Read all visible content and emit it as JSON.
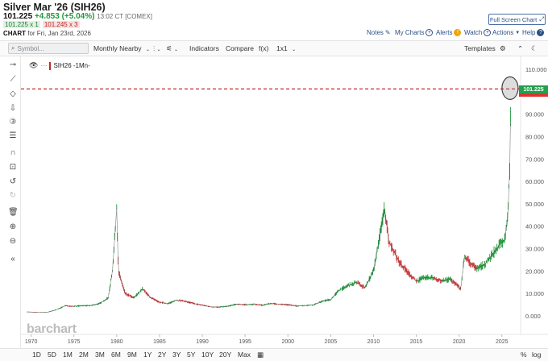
{
  "header": {
    "title": "Silver Mar '26 (SIH26)",
    "last": "101.225",
    "change": "+4.853 (+5.04%)",
    "time": "13:02 CT [COMEX]",
    "bid": "101.225 x 1",
    "ask": "101.245 x 3",
    "chart_label": "CHART",
    "chart_date": "for Fri, Jan 23rd, 2026",
    "fullscreen_label": "Full Screen Chart"
  },
  "toplinks": {
    "notes": "Notes",
    "mycharts": "My Charts",
    "alerts": "Alerts",
    "watch": "Watch",
    "actions": "Actions",
    "help": "Help"
  },
  "toolbar": {
    "search_placeholder": "Symbol...",
    "monthly_nearby": "Monthly Nearby",
    "indicators": "Indicators",
    "compare": "Compare",
    "fx": "f(x)",
    "layout": "1x1",
    "templates": "Templates"
  },
  "symbol_label": "SIH26 -1Mn-",
  "watermark": "barchart",
  "last_price_box": "101.225",
  "bottombar": {
    "periods": [
      "1D",
      "5D",
      "1M",
      "2M",
      "3M",
      "6M",
      "9M",
      "1Y",
      "2Y",
      "3Y",
      "5Y",
      "10Y",
      "20Y",
      "Max"
    ],
    "percent": "%",
    "log": "log"
  },
  "colors": {
    "up": "#1e9a3a",
    "down": "#d33a3a",
    "link": "#2c4f86",
    "price_line": "#c62828"
  },
  "chart_data": {
    "type": "line",
    "title": "",
    "xlabel": "",
    "ylabel": "",
    "ylim": [
      0,
      110
    ],
    "xlim": [
      1969,
      2027
    ],
    "x_ticks": [
      "1970",
      "1975",
      "1980",
      "1985",
      "1990",
      "1995",
      "2000",
      "2005",
      "2010",
      "2015",
      "2020",
      "2025"
    ],
    "y_ticks": [
      "0.000",
      "10.000",
      "20.000",
      "30.000",
      "40.000",
      "50.000",
      "60.000",
      "70.000",
      "80.000",
      "90.000",
      "100.000",
      "110.000"
    ],
    "series": [
      {
        "values_x": [
          1969.5,
          1971,
          1972,
          1973,
          1974,
          1975,
          1976,
          1977,
          1978,
          1979,
          1979.5,
          1980.0,
          1980.2,
          1980.5,
          1981,
          1982,
          1983,
          1984,
          1985,
          1986,
          1987,
          1988,
          1989,
          1990,
          1991,
          1992,
          1993,
          1994,
          1995,
          1996,
          1997,
          1998,
          1999,
          2000,
          2001,
          2002,
          2003,
          2004,
          2005,
          2006,
          2007,
          2008,
          2009,
          2010,
          2011.3,
          2011.8,
          2012,
          2013,
          2014,
          2015,
          2016,
          2017,
          2018,
          2019,
          2020.2,
          2020.6,
          2021,
          2022,
          2023,
          2024,
          2024.8,
          2025.3,
          2025.7,
          2025.95,
          2026.05
        ],
        "values_y": [
          1.8,
          1.5,
          1.7,
          2.8,
          4.5,
          4.3,
          4.5,
          4.6,
          5.5,
          8.0,
          20.0,
          48.0,
          20.0,
          16.0,
          10.0,
          8.0,
          12.0,
          8.0,
          6.0,
          5.5,
          7.0,
          6.5,
          5.5,
          4.8,
          4.0,
          3.9,
          4.3,
          5.2,
          5.0,
          5.1,
          4.8,
          5.5,
          5.2,
          5.0,
          4.4,
          4.6,
          4.9,
          6.5,
          7.3,
          11.5,
          13.4,
          15.0,
          12.5,
          20.0,
          48.0,
          33.0,
          32.0,
          24.0,
          19.5,
          15.5,
          17.0,
          17.0,
          15.5,
          16.5,
          12.0,
          26.0,
          25.0,
          21.0,
          23.0,
          28.0,
          32.0,
          34.0,
          44.0,
          70.0,
          101.225
        ]
      }
    ],
    "last_price": 101.225,
    "grid": false,
    "legend": "none"
  }
}
